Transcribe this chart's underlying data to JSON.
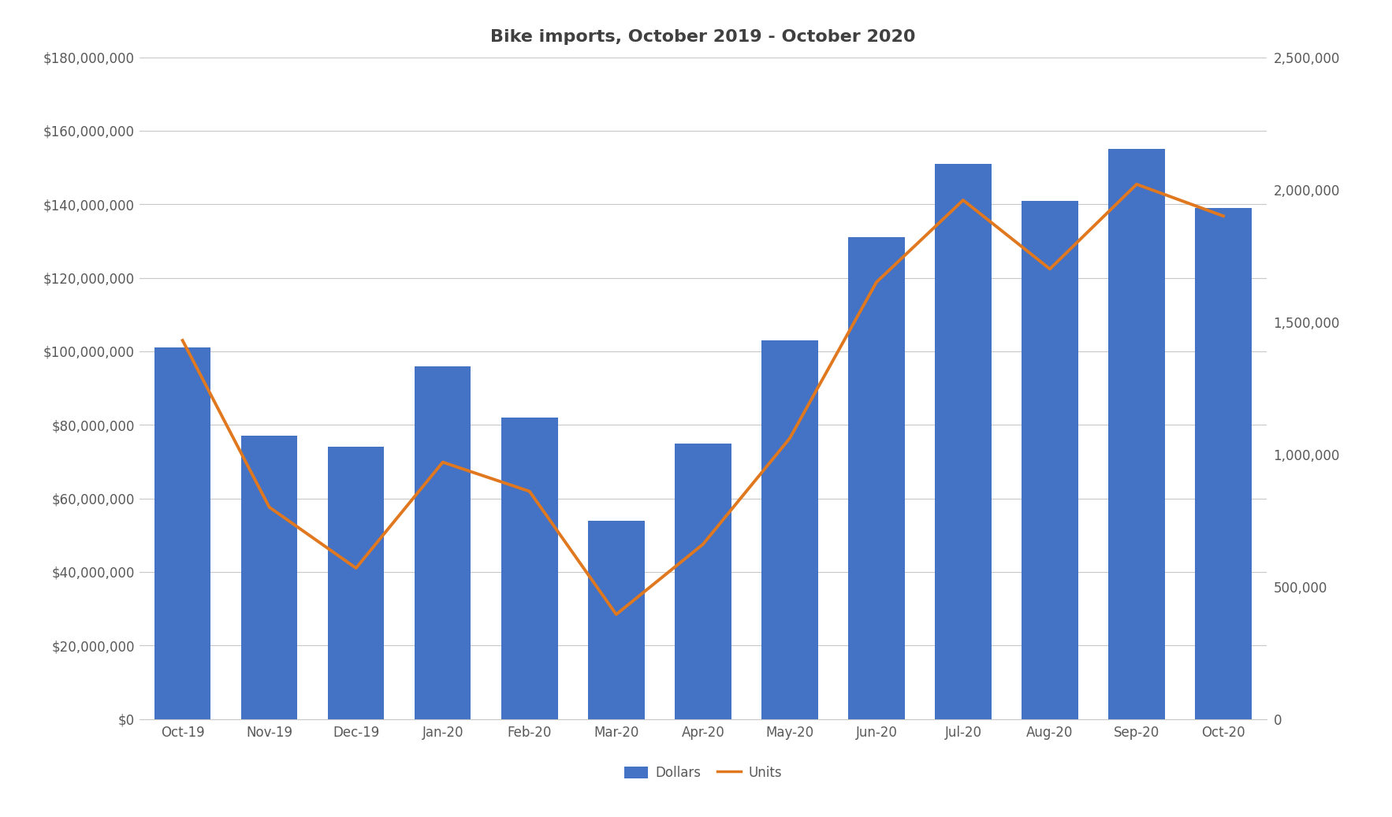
{
  "title": "Bike imports, October 2019 - October 2020",
  "categories": [
    "Oct-19",
    "Nov-19",
    "Dec-19",
    "Jan-20",
    "Feb-20",
    "Mar-20",
    "Apr-20",
    "May-20",
    "Jun-20",
    "Jul-20",
    "Aug-20",
    "Sep-20",
    "Oct-20"
  ],
  "dollars": [
    101000000,
    77000000,
    74000000,
    96000000,
    82000000,
    54000000,
    75000000,
    103000000,
    131000000,
    151000000,
    141000000,
    155000000,
    139000000
  ],
  "units": [
    1430000,
    800000,
    570000,
    970000,
    860000,
    395000,
    660000,
    1060000,
    1650000,
    1960000,
    1700000,
    2020000,
    1900000
  ],
  "bar_color": "#4472C4",
  "line_color": "#E07820",
  "left_ylim": [
    0,
    180000000
  ],
  "right_ylim": [
    0,
    2500000
  ],
  "left_yticks": [
    0,
    20000000,
    40000000,
    60000000,
    80000000,
    100000000,
    120000000,
    140000000,
    160000000,
    180000000
  ],
  "right_yticks": [
    0,
    500000,
    1000000,
    1500000,
    2000000,
    2500000
  ],
  "legend_labels": [
    "Dollars",
    "Units"
  ],
  "background_color": "#FFFFFF",
  "grid_color": "#C8C8C8",
  "title_fontsize": 16,
  "tick_fontsize": 12,
  "legend_fontsize": 12,
  "tick_color": "#595959"
}
